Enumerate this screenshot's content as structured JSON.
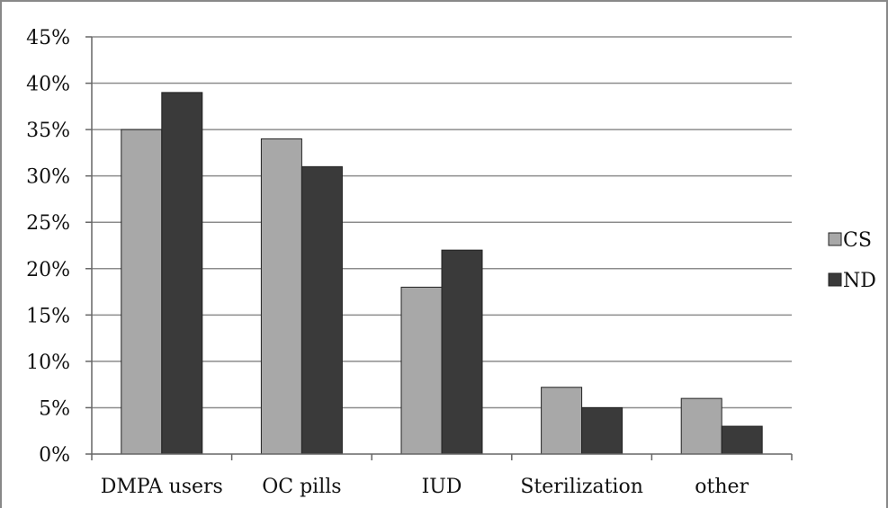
{
  "chart_data": {
    "type": "bar",
    "title": "",
    "xlabel": "",
    "ylabel": "",
    "categories": [
      "DMPA users",
      "OC pills",
      "IUD",
      "Sterilization",
      "other"
    ],
    "series": [
      {
        "name": "CS",
        "values": [
          35,
          34,
          18,
          7.2,
          6
        ],
        "color": "#a8a8a8"
      },
      {
        "name": "ND",
        "values": [
          39,
          31,
          22,
          5,
          3
        ],
        "color": "#3a3a3a"
      }
    ],
    "ylim": [
      0,
      45
    ],
    "yticks": [
      0,
      5,
      10,
      15,
      20,
      25,
      30,
      35,
      40,
      45
    ],
    "ytick_labels": [
      "0%",
      "5%",
      "10%",
      "15%",
      "20%",
      "25%",
      "30%",
      "35%",
      "40%",
      "45%"
    ],
    "grid": true,
    "legend_position": "right"
  }
}
